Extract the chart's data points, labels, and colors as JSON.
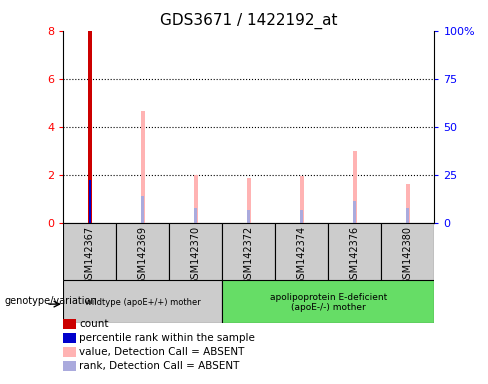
{
  "title": "GDS3671 / 1422192_at",
  "samples": [
    "GSM142367",
    "GSM142369",
    "GSM142370",
    "GSM142372",
    "GSM142374",
    "GSM142376",
    "GSM142380"
  ],
  "count_values": [
    8.0,
    0,
    0,
    0,
    0,
    0,
    0
  ],
  "percentile_rank": [
    1.8,
    0,
    0,
    0,
    0,
    0,
    0
  ],
  "value_absent": [
    0,
    4.65,
    2.0,
    1.85,
    1.95,
    3.0,
    1.6
  ],
  "rank_absent": [
    0,
    1.1,
    0.6,
    0.55,
    0.55,
    0.9,
    0.6
  ],
  "ylim_left": [
    0,
    8
  ],
  "ylim_right": [
    0,
    100
  ],
  "yticks_left": [
    0,
    2,
    4,
    6,
    8
  ],
  "yticks_right": [
    0,
    25,
    50,
    75,
    100
  ],
  "yticklabels_right": [
    "0",
    "25",
    "50",
    "75",
    "100%"
  ],
  "group1_label": "wildtype (apoE+/+) mother",
  "group2_label": "apolipoprotein E-deficient\n(apoE-/-) mother",
  "genotype_label": "genotype/variation",
  "color_count": "#cc0000",
  "color_percentile": "#0000cc",
  "color_value_absent": "#ffb3b3",
  "color_rank_absent": "#aaaadd",
  "color_group1_bg": "#cccccc",
  "color_group2_bg": "#66dd66",
  "legend_items": [
    {
      "label": "count",
      "color": "#cc0000"
    },
    {
      "label": "percentile rank within the sample",
      "color": "#0000cc"
    },
    {
      "label": "value, Detection Call = ABSENT",
      "color": "#ffb3b3"
    },
    {
      "label": "rank, Detection Call = ABSENT",
      "color": "#aaaadd"
    }
  ]
}
